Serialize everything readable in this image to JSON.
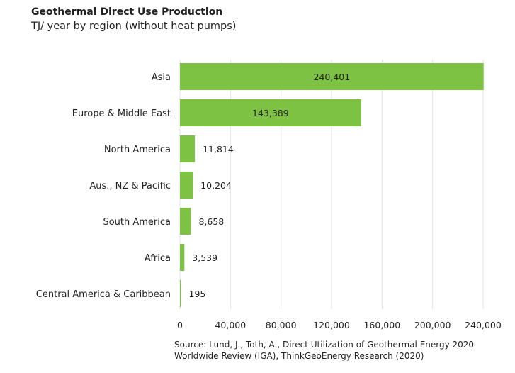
{
  "chart_data": {
    "type": "bar",
    "orientation": "horizontal",
    "title": "Geothermal Direct Use Production",
    "subtitle_prefix": "TJ/ year by region ",
    "subtitle_underlined": "(without heat pumps)",
    "categories": [
      "Asia",
      "Europe & Middle East",
      "North America",
      "Aus., NZ & Pacific",
      "South America",
      "Africa",
      "Central America & Caribbean"
    ],
    "values": [
      240401,
      143389,
      11814,
      10204,
      8658,
      3539,
      195
    ],
    "data_labels": [
      "240,401",
      "143,389",
      "11,814",
      "10,204",
      "8,658",
      "3,539",
      "195"
    ],
    "xlim": [
      0,
      240000
    ],
    "xticks": [
      0,
      40000,
      80000,
      120000,
      160000,
      200000,
      240000
    ],
    "xtick_labels": [
      "0",
      "40,000",
      "80,000",
      "120,000",
      "160,000",
      "200,000",
      "240,000"
    ],
    "grid": "vertical",
    "bar_color": "#7dc242",
    "source": [
      "Source: Lund, J., Toth, A., Direct Utilization of Geothermal Energy 2020",
      "Worldwide Review (IGA), ThinkGeoEnergy Research (2020)"
    ]
  }
}
